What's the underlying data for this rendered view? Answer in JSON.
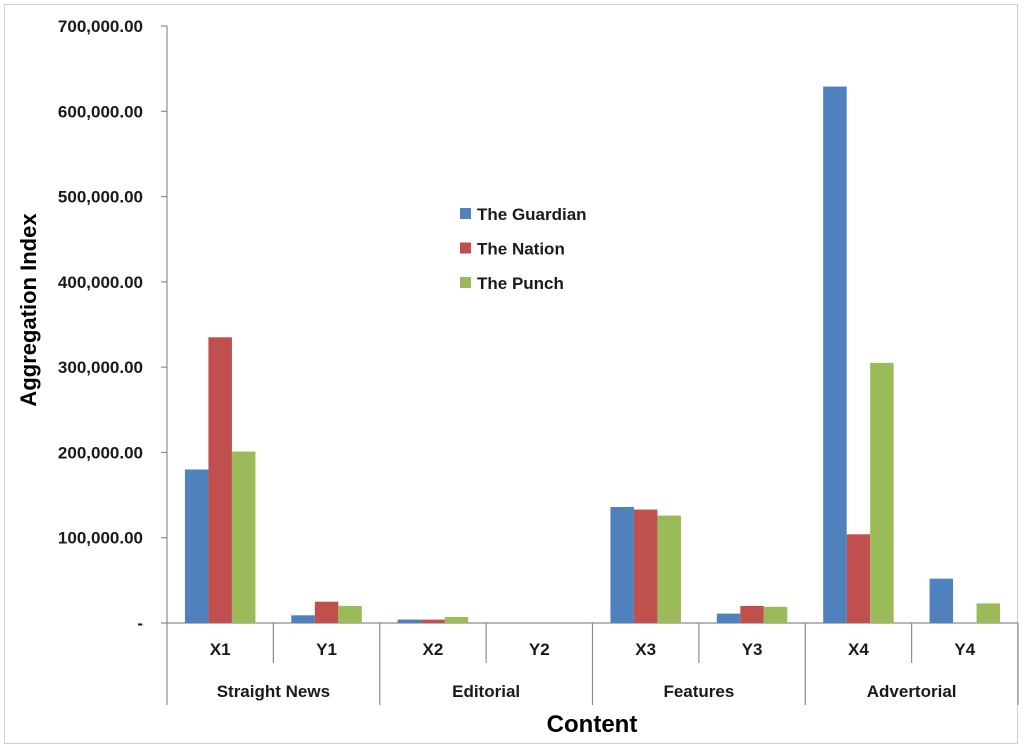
{
  "chart_data": {
    "type": "bar",
    "xlabel": "Content",
    "ylabel": "Aggregation Index",
    "ylim": [
      0,
      700000
    ],
    "y_ticks": [
      0,
      100000,
      200000,
      300000,
      400000,
      500000,
      600000,
      700000
    ],
    "y_tick_labels": [
      "-",
      "100,000.00",
      "200,000.00",
      "300,000.00",
      "400,000.00",
      "500,000.00",
      "600,000.00",
      "700,000.00"
    ],
    "categories": [
      "X1",
      "Y1",
      "X2",
      "Y2",
      "X3",
      "Y3",
      "X4",
      "Y4"
    ],
    "groups": [
      {
        "label": "Straight News",
        "categories": [
          "X1",
          "Y1"
        ]
      },
      {
        "label": "Editorial",
        "categories": [
          "X2",
          "Y2"
        ]
      },
      {
        "label": "Features",
        "categories": [
          "X3",
          "Y3"
        ]
      },
      {
        "label": "Advertorial",
        "categories": [
          "X4",
          "Y4"
        ]
      }
    ],
    "series": [
      {
        "name": "The Guardian",
        "color": "#4f81bd",
        "values": [
          180000,
          9000,
          4000,
          0,
          136000,
          11000,
          629000,
          52000
        ]
      },
      {
        "name": "The Nation",
        "color": "#c0504d",
        "values": [
          335000,
          25000,
          4000,
          0,
          133000,
          20000,
          104000,
          0
        ]
      },
      {
        "name": "The Punch",
        "color": "#9bbb59",
        "values": [
          201000,
          20000,
          7000,
          0,
          126000,
          19000,
          305000,
          23000
        ]
      }
    ],
    "grid": false,
    "legend_position": "upper-center, inside plot"
  }
}
